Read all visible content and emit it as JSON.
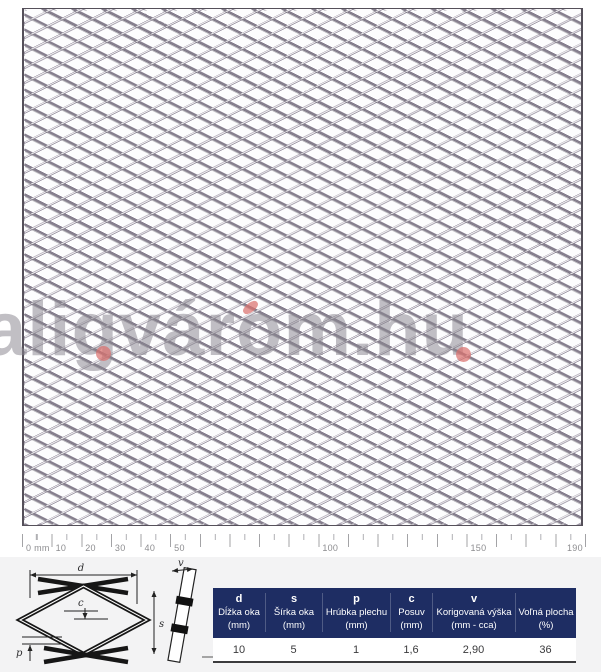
{
  "watermark": {
    "text": "aligvárom.hu",
    "accent_color": "#d9706e",
    "text_color": "#88858d"
  },
  "ruler": {
    "unit": "mm",
    "range_mm": [
      0,
      190
    ],
    "labels": [
      {
        "mm": 0,
        "text": "0 mm"
      },
      {
        "mm": 10,
        "text": "10"
      },
      {
        "mm": 20,
        "text": "20"
      },
      {
        "mm": 30,
        "text": "30"
      },
      {
        "mm": 40,
        "text": "40"
      },
      {
        "mm": 50,
        "text": "50"
      },
      {
        "mm": 100,
        "text": "100"
      },
      {
        "mm": 150,
        "text": "150"
      },
      {
        "mm": 190,
        "text": "190"
      }
    ]
  },
  "diagram": {
    "labels": {
      "d": "d",
      "s": "s",
      "c": "c",
      "p": "p",
      "v": "v"
    }
  },
  "table": {
    "header_bg": "#1e2d63",
    "columns": [
      {
        "letter": "d",
        "name": "Dĺžka oka",
        "unit": "(mm)",
        "value": "10"
      },
      {
        "letter": "s",
        "name": "Šírka oka",
        "unit": "(mm)",
        "value": "5"
      },
      {
        "letter": "p",
        "name": "Hrúbka plechu",
        "unit": "(mm)",
        "value": "1"
      },
      {
        "letter": "c",
        "name": "Posuv",
        "unit": "(mm)",
        "value": "1,6"
      },
      {
        "letter": "v",
        "name": "Korigovaná výška",
        "unit": "(mm - cca)",
        "value": "2,90"
      },
      {
        "letter": "",
        "name": "Voľná plocha",
        "unit": "(%)",
        "value": "36"
      }
    ]
  },
  "palette": {
    "mesh_strand": "#8d8794",
    "ruler_tick": "#a3a3a6",
    "panel_bg": "#f3f3f4",
    "value_text": "#3a3a3c"
  }
}
